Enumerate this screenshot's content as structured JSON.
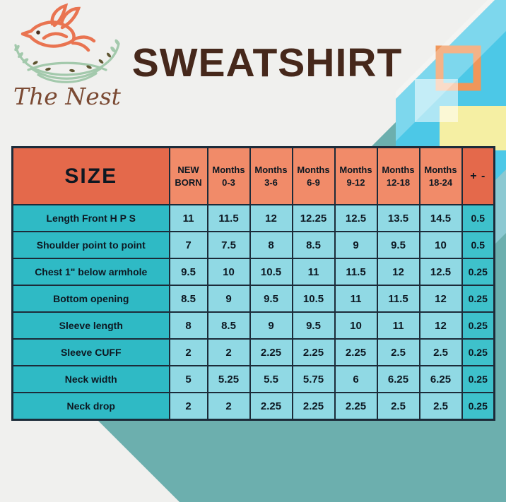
{
  "brand": "The Nest",
  "title": "SWEATSHIRT",
  "colors": {
    "brown": "#46281B",
    "coral": "#E97451",
    "script-brown": "#7B4A33",
    "border": "#1C2B39",
    "ink": "#0D1822",
    "header-dark": "#E4694B",
    "header-light": "#F18B69",
    "label-teal": "#2FBAC5",
    "cell-blue": "#90D9E4",
    "pm-teal": "#3EC1CB",
    "diamond-teal": "#6CAFAE",
    "stripe-cyan": "#4CC8E7",
    "stripe-light": "#8CC9D2",
    "square-yellow": "#F5EFA3",
    "frame-orange": "#F0965A",
    "nest-sage": "#A3C9AC",
    "leaf-olive": "#5E5530"
  },
  "chart_data": {
    "type": "table",
    "title": "SWEATSHIRT",
    "headers": [
      [
        "SIZE"
      ],
      [
        "NEW",
        "BORN"
      ],
      [
        "Months",
        "0-3"
      ],
      [
        "Months",
        "3-6"
      ],
      [
        "Months",
        "6-9"
      ],
      [
        "Months",
        "9-12"
      ],
      [
        "Months",
        "12-18"
      ],
      [
        "Months",
        "18-24"
      ],
      [
        "+ -"
      ]
    ],
    "rows": [
      {
        "label": "Length Front H P S",
        "values": [
          "11",
          "11.5",
          "12",
          "12.25",
          "12.5",
          "13.5",
          "14.5",
          "0.5"
        ]
      },
      {
        "label": "Shoulder point to point",
        "values": [
          "7",
          "7.5",
          "8",
          "8.5",
          "9",
          "9.5",
          "10",
          "0.5"
        ]
      },
      {
        "label": "Chest 1\" below armhole",
        "values": [
          "9.5",
          "10",
          "10.5",
          "11",
          "11.5",
          "12",
          "12.5",
          "0.25"
        ]
      },
      {
        "label": "Bottom opening",
        "values": [
          "8.5",
          "9",
          "9.5",
          "10.5",
          "11",
          "11.5",
          "12",
          "0.25"
        ]
      },
      {
        "label": "Sleeve length",
        "values": [
          "8",
          "8.5",
          "9",
          "9.5",
          "10",
          "11",
          "12",
          "0.25"
        ]
      },
      {
        "label": "Sleeve CUFF",
        "values": [
          "2",
          "2",
          "2.25",
          "2.25",
          "2.25",
          "2.5",
          "2.5",
          "0.25"
        ]
      },
      {
        "label": "Neck width",
        "values": [
          "5",
          "5.25",
          "5.5",
          "5.75",
          "6",
          "6.25",
          "6.25",
          "0.25"
        ]
      },
      {
        "label": "Neck drop",
        "values": [
          "2",
          "2",
          "2.25",
          "2.25",
          "2.25",
          "2.5",
          "2.5",
          "0.25"
        ]
      }
    ]
  }
}
